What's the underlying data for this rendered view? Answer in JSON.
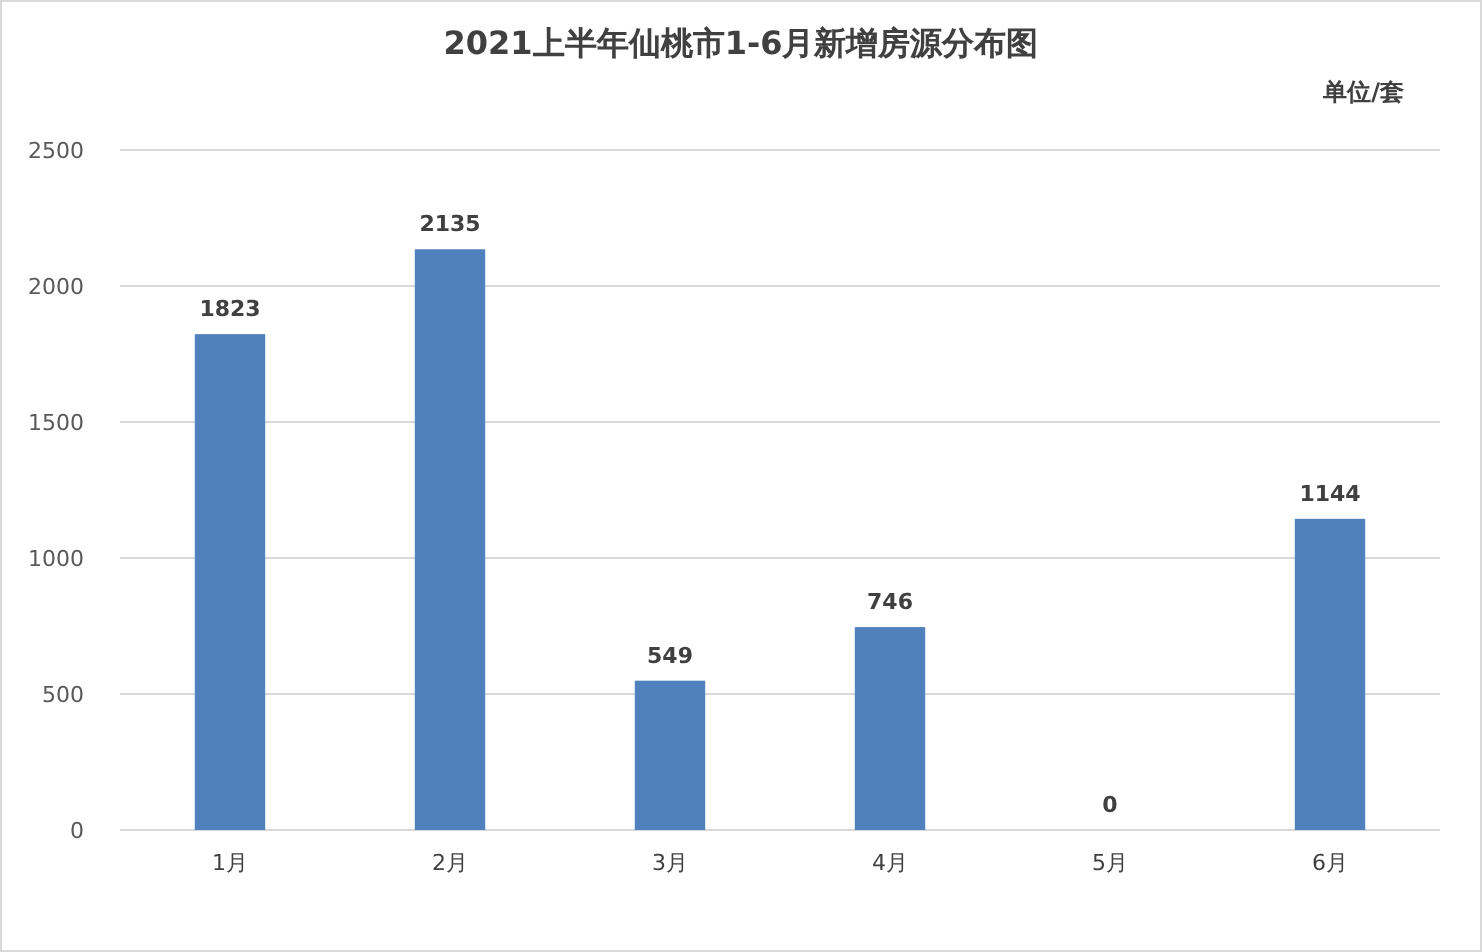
{
  "chart_data": {
    "type": "bar",
    "title": "2021上半年仙桃市1-6月新增房源分布图",
    "annotations": [
      "单位/套"
    ],
    "categories": [
      "1月",
      "2月",
      "3月",
      "4月",
      "5月",
      "6月"
    ],
    "values": [
      1823,
      2135,
      549,
      746,
      0,
      1144
    ],
    "color": "#4f81bd",
    "ylim": [
      0,
      2500
    ],
    "yticks": [
      0,
      500,
      1000,
      1500,
      2000,
      2500
    ],
    "grid": "y",
    "data_labels": true
  }
}
